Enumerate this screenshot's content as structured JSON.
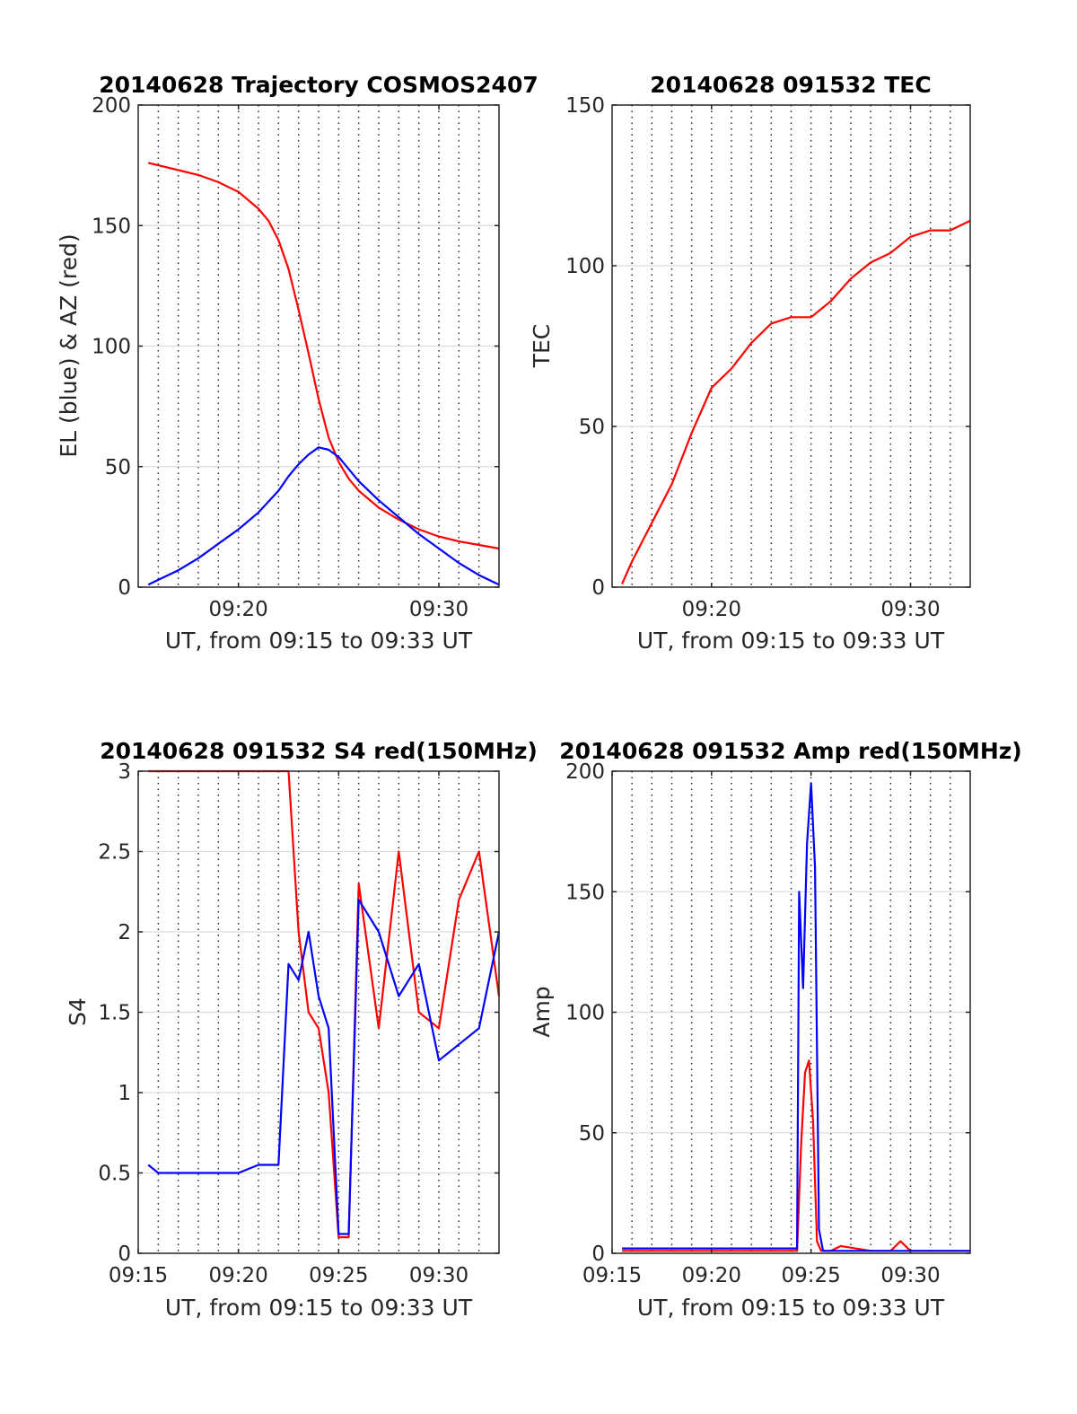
{
  "figure": {
    "start_time": "09:15",
    "end_time": "09:33",
    "colors": {
      "el": "#0000ff",
      "az": "#ff0000",
      "red": "#ff0000",
      "blue": "#0000ff"
    }
  },
  "chart_data": [
    {
      "type": "line",
      "title": "20140628 Trajectory COSMOS2407",
      "xlabel": "UT, from 09:15 to 09:33 UT",
      "ylabel": "EL (blue) & AZ (red)",
      "xlim": [
        "09:15",
        "09:33"
      ],
      "ylim": [
        0,
        200
      ],
      "yticks": [
        0,
        50,
        100,
        150,
        200
      ],
      "xticks": [
        "09:20",
        "09:30"
      ],
      "grid": true,
      "series": [
        {
          "name": "AZ",
          "color": "#ff0000",
          "x": [
            "09:15.5",
            "09:16",
            "09:17",
            "09:18",
            "09:19",
            "09:20",
            "09:21",
            "09:21.5",
            "09:22",
            "09:22.5",
            "09:23",
            "09:23.5",
            "09:24",
            "09:24.5",
            "09:25",
            "09:25.5",
            "09:26",
            "09:27",
            "09:28",
            "09:29",
            "09:30",
            "09:31",
            "09:32",
            "09:33"
          ],
          "values": [
            176,
            175,
            173,
            171,
            168,
            164,
            157,
            152,
            144,
            132,
            115,
            97,
            78,
            62,
            52,
            45,
            40,
            33,
            28,
            24,
            21,
            19,
            17.5,
            16
          ]
        },
        {
          "name": "EL",
          "color": "#0000ff",
          "x": [
            "09:15.5",
            "09:16",
            "09:17",
            "09:18",
            "09:19",
            "09:20",
            "09:21",
            "09:22",
            "09:22.5",
            "09:23",
            "09:23.5",
            "09:24",
            "09:24.5",
            "09:25",
            "09:25.5",
            "09:26",
            "09:27",
            "09:28",
            "09:29",
            "09:30",
            "09:31",
            "09:32",
            "09:33"
          ],
          "values": [
            1,
            3,
            7,
            12,
            18,
            24,
            31,
            40,
            46,
            51,
            55,
            58,
            57,
            54,
            49,
            44,
            36,
            29,
            22,
            16,
            10,
            5,
            1
          ]
        }
      ]
    },
    {
      "type": "line",
      "title": "20140628 091532 TEC",
      "xlabel": "UT, from 09:15 to 09:33 UT",
      "ylabel": "TEC",
      "xlim": [
        "09:15",
        "09:33"
      ],
      "ylim": [
        0,
        150
      ],
      "yticks": [
        0,
        50,
        100,
        150
      ],
      "xticks": [
        "09:20",
        "09:30"
      ],
      "grid": true,
      "series": [
        {
          "name": "TEC",
          "color": "#ff0000",
          "x": [
            "09:15.5",
            "09:16",
            "09:17",
            "09:18",
            "09:19",
            "09:20",
            "09:21",
            "09:22",
            "09:23",
            "09:24",
            "09:25",
            "09:26",
            "09:27",
            "09:28",
            "09:29",
            "09:30",
            "09:31",
            "09:32",
            "09:33"
          ],
          "values": [
            1,
            8,
            20,
            32,
            48,
            62,
            68,
            76,
            82,
            84,
            84,
            89,
            96,
            101,
            104,
            109,
            111,
            111,
            114
          ]
        }
      ]
    },
    {
      "type": "line",
      "title": "20140628 091532 S4 red(150MHz)",
      "xlabel": "UT, from 09:15 to 09:33 UT",
      "ylabel": "S4",
      "xlim": [
        "09:15",
        "09:33"
      ],
      "ylim": [
        0,
        3
      ],
      "yticks": [
        0,
        0.5,
        1,
        1.5,
        2,
        2.5,
        3
      ],
      "xticks": [
        "09:15",
        "09:20",
        "09:25",
        "09:30"
      ],
      "grid": true,
      "series": [
        {
          "name": "red",
          "color": "#ff0000",
          "x": [
            "09:15.5",
            "09:22.5",
            "09:23",
            "09:23.5",
            "09:24",
            "09:24.5",
            "09:25",
            "09:25.5",
            "09:26",
            "09:27",
            "09:28",
            "09:29",
            "09:30",
            "09:31",
            "09:32",
            "09:33"
          ],
          "values": [
            3,
            3,
            2,
            1.5,
            1.4,
            1.0,
            0.1,
            0.1,
            2.3,
            1.4,
            2.5,
            1.5,
            1.4,
            2.2,
            2.5,
            1.6
          ]
        },
        {
          "name": "blue",
          "color": "#0000ff",
          "x": [
            "09:15.5",
            "09:16",
            "09:17",
            "09:18",
            "09:19",
            "09:20",
            "09:21",
            "09:22",
            "09:22.5",
            "09:23",
            "09:23.5",
            "09:24",
            "09:24.5",
            "09:25",
            "09:25.5",
            "09:26",
            "09:27",
            "09:28",
            "09:29",
            "09:30",
            "09:31",
            "09:32",
            "09:33"
          ],
          "values": [
            0.55,
            0.5,
            0.5,
            0.5,
            0.5,
            0.5,
            0.55,
            0.55,
            1.8,
            1.7,
            2.0,
            1.6,
            1.4,
            0.12,
            0.12,
            2.2,
            2.0,
            1.6,
            1.8,
            1.2,
            1.3,
            1.4,
            2.0
          ]
        }
      ]
    },
    {
      "type": "line",
      "title": "20140628 091532 Amp red(150MHz)",
      "xlabel": "UT, from 09:15 to 09:33 UT",
      "ylabel": "Amp",
      "xlim": [
        "09:15",
        "09:33"
      ],
      "ylim": [
        0,
        200
      ],
      "yticks": [
        0,
        50,
        100,
        150,
        200
      ],
      "xticks": [
        "09:15",
        "09:20",
        "09:25",
        "09:30"
      ],
      "grid": true,
      "series": [
        {
          "name": "red",
          "color": "#ff0000",
          "x": [
            "09:15.5",
            "09:24.3",
            "09:24.5",
            "09:24.7",
            "09:24.9",
            "09:25.1",
            "09:25.3",
            "09:25.5",
            "09:26",
            "09:26.5",
            "09:28",
            "09:29",
            "09:29.5",
            "09:30",
            "09:33"
          ],
          "values": [
            1,
            1,
            45,
            75,
            80,
            55,
            5,
            1,
            1,
            3,
            1,
            1,
            5,
            1,
            1
          ]
        },
        {
          "name": "blue",
          "color": "#0000ff",
          "x": [
            "09:15.5",
            "09:20",
            "09:24.3",
            "09:24.4",
            "09:24.6",
            "09:24.8",
            "09:25.0",
            "09:25.2",
            "09:25.4",
            "09:25.6",
            "09:27",
            "09:30",
            "09:33"
          ],
          "values": [
            2,
            2,
            2,
            150,
            110,
            170,
            195,
            160,
            10,
            1,
            1,
            1,
            1
          ]
        }
      ]
    }
  ]
}
